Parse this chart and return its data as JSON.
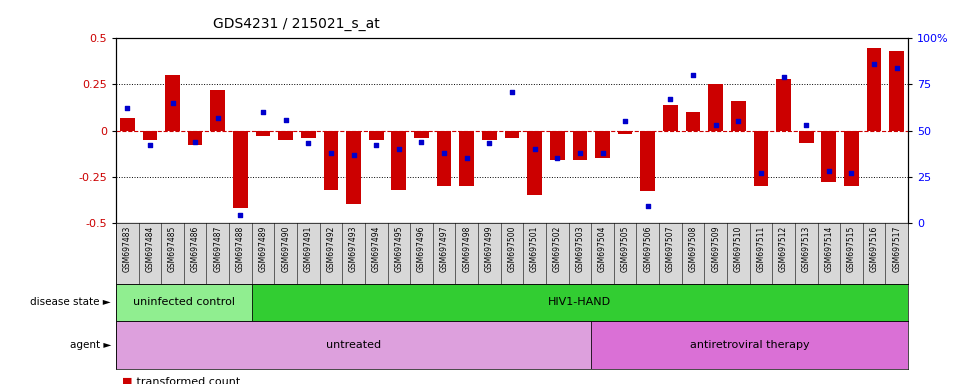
{
  "title": "GDS4231 / 215021_s_at",
  "samples": [
    "GSM697483",
    "GSM697484",
    "GSM697485",
    "GSM697486",
    "GSM697487",
    "GSM697488",
    "GSM697489",
    "GSM697490",
    "GSM697491",
    "GSM697492",
    "GSM697493",
    "GSM697494",
    "GSM697495",
    "GSM697496",
    "GSM697497",
    "GSM697498",
    "GSM697499",
    "GSM697500",
    "GSM697501",
    "GSM697502",
    "GSM697503",
    "GSM697504",
    "GSM697505",
    "GSM697506",
    "GSM697507",
    "GSM697508",
    "GSM697509",
    "GSM697510",
    "GSM697511",
    "GSM697512",
    "GSM697513",
    "GSM697514",
    "GSM697515",
    "GSM697516",
    "GSM697517"
  ],
  "transformed_count": [
    0.07,
    -0.05,
    0.3,
    -0.08,
    0.22,
    -0.42,
    -0.03,
    -0.05,
    -0.04,
    -0.32,
    -0.4,
    -0.05,
    -0.32,
    -0.04,
    -0.3,
    -0.3,
    -0.05,
    -0.04,
    -0.35,
    -0.16,
    -0.16,
    -0.15,
    -0.02,
    -0.33,
    0.14,
    0.1,
    0.25,
    0.16,
    -0.3,
    0.28,
    -0.07,
    -0.28,
    -0.3,
    0.45,
    0.43
  ],
  "percentile_rank": [
    62,
    42,
    65,
    44,
    57,
    4,
    60,
    56,
    43,
    38,
    37,
    42,
    40,
    44,
    38,
    35,
    43,
    71,
    40,
    35,
    38,
    38,
    55,
    9,
    67,
    80,
    53,
    55,
    27,
    79,
    53,
    28,
    27,
    86,
    84
  ],
  "disease_state_groups": [
    {
      "label": "uninfected control",
      "start": 0,
      "end": 6,
      "color": "#90EE90"
    },
    {
      "label": "HIV1-HAND",
      "start": 6,
      "end": 35,
      "color": "#32CD32"
    }
  ],
  "agent_groups": [
    {
      "label": "untreated",
      "start": 0,
      "end": 21,
      "color": "#DDA0DD"
    },
    {
      "label": "antiretroviral therapy",
      "start": 21,
      "end": 35,
      "color": "#DA70D6"
    }
  ],
  "ylim": [
    -0.5,
    0.5
  ],
  "yticks_left": [
    -0.5,
    -0.25,
    0.0,
    0.25,
    0.5
  ],
  "yticks_right_labels": [
    "0",
    "25",
    "50",
    "75",
    "100%"
  ],
  "bar_color": "#CC0000",
  "dot_color": "#0000CC",
  "bg_color": "#ffffff",
  "tick_bg_color": "#d8d8d8"
}
